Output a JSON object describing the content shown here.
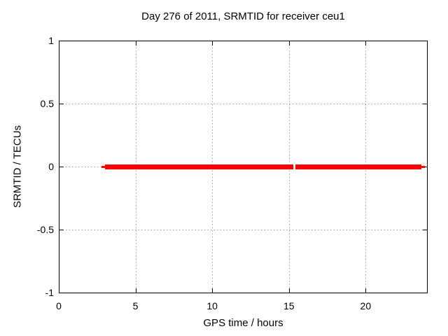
{
  "figure": {
    "background": "#ffffff"
  },
  "chart_data": {
    "type": "line",
    "title": "Day 276 of 2011, SRMTID for receiver ceu1",
    "xlabel": "GPS time / hours",
    "ylabel": "SRMTID / TECUs",
    "xlim": [
      0,
      24
    ],
    "ylim": [
      -1,
      1
    ],
    "grid": true,
    "legend": false,
    "x_ticks": [
      {
        "value": 0,
        "label": "0"
      },
      {
        "value": 5,
        "label": "5"
      },
      {
        "value": 10,
        "label": "10"
      },
      {
        "value": 15,
        "label": "15"
      },
      {
        "value": 20,
        "label": "20"
      }
    ],
    "y_ticks": [
      {
        "value": 1,
        "label": "1"
      },
      {
        "value": 0.5,
        "label": "0.5"
      },
      {
        "value": 0,
        "label": "0"
      },
      {
        "value": -0.5,
        "label": "-0.5"
      },
      {
        "value": -1,
        "label": "-1"
      }
    ],
    "series": [
      {
        "name": "SRMTID",
        "color": "#ff0000",
        "style": "thick-horizontal-line",
        "segments": [
          {
            "x_start": 3.0,
            "x_end": 15.3,
            "y": 0
          },
          {
            "x_start": 15.42,
            "x_end": 23.65,
            "y": 0
          }
        ]
      }
    ],
    "colors": {
      "grid": "#9e9e9e",
      "axis": "#000000",
      "text": "#000000",
      "series": "#ff0000"
    }
  }
}
